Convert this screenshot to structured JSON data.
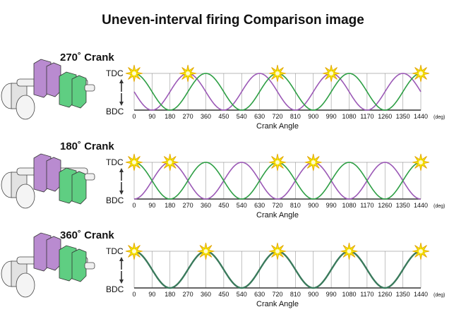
{
  "title": "Uneven-interval firing Comparison image",
  "colors": {
    "cyl1": "#2e9f45",
    "cyl2": "#9b59b6",
    "overlap": "#3a7a5c",
    "grid": "#999999",
    "flash": "#f4e300",
    "flash_edge": "#e0a200",
    "crank_purple": "#b98bd0",
    "crank_green": "#5fce82",
    "piston": "#e2e2e2"
  },
  "labels": {
    "tdc": "TDC",
    "bdc": "BDC",
    "unit": "(deg)",
    "xlabel": "Crank Angle",
    "ticks": [
      "0",
      "90",
      "180",
      "270",
      "360",
      "450",
      "540",
      "630",
      "720",
      "810",
      "900",
      "990",
      "1080",
      "1170",
      "1260",
      "1350",
      "1440"
    ]
  },
  "panels": [
    {
      "title": "270˚ Crank",
      "cyl2_offset_deg": 270,
      "single_series": false,
      "firing_deg": [
        0,
        270,
        720,
        990,
        1440
      ]
    },
    {
      "title": "180˚ Crank",
      "cyl2_offset_deg": 180,
      "single_series": false,
      "firing_deg": [
        0,
        180,
        720,
        900,
        1440
      ]
    },
    {
      "title": "360˚ Crank",
      "cyl2_offset_deg": 360,
      "single_series": true,
      "firing_deg": [
        0,
        360,
        720,
        1080,
        1440
      ]
    }
  ]
}
